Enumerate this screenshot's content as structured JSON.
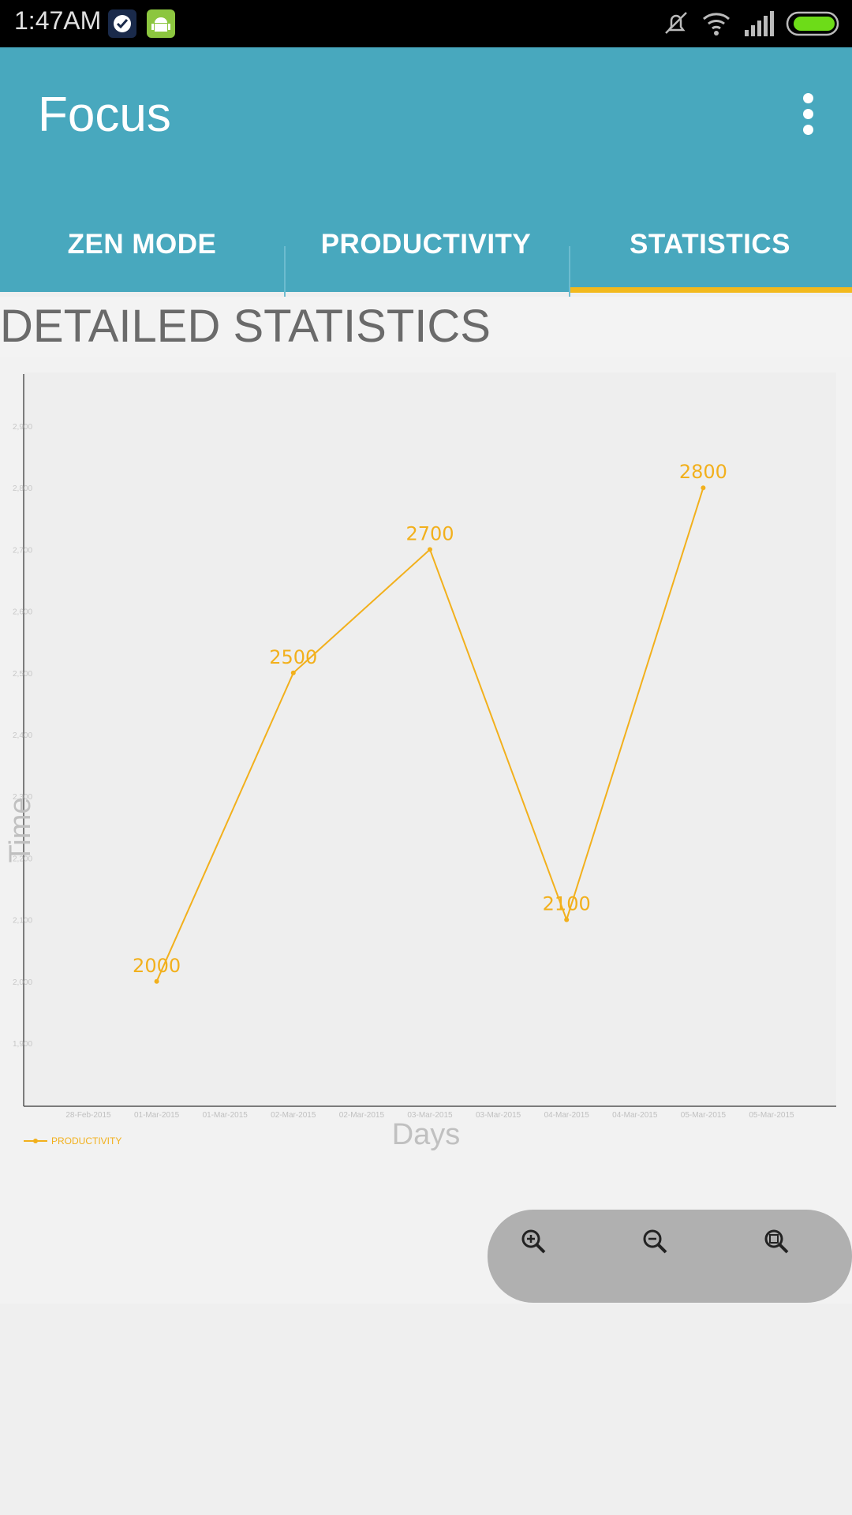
{
  "status_bar": {
    "time": "1:47AM"
  },
  "app": {
    "title": "Focus"
  },
  "tabs": [
    {
      "label": "ZEN MODE"
    },
    {
      "label": "PRODUCTIVITY"
    },
    {
      "label": "STATISTICS"
    }
  ],
  "section": {
    "title": "DETAILED STATISTICS"
  },
  "colors": {
    "appbar": "#48a8be",
    "indicator": "#f2b91c",
    "series": "#f2b01c"
  },
  "chart_data": {
    "type": "line",
    "x": [
      "01-Mar-2015",
      "02-Mar-2015",
      "03-Mar-2015",
      "04-Mar-2015",
      "05-Mar-2015"
    ],
    "series": [
      {
        "name": "PRODUCTIVITY",
        "values": [
          2000,
          2500,
          2700,
          2100,
          2800
        ]
      }
    ],
    "xlabel": "Days",
    "ylabel": "Time",
    "x_tick_labels": [
      "28-Feb-2015",
      "01-Mar-2015",
      "01-Mar-2015",
      "02-Mar-2015",
      "02-Mar-2015",
      "03-Mar-2015",
      "03-Mar-2015",
      "04-Mar-2015",
      "04-Mar-2015",
      "05-Mar-2015",
      "05-Mar-2015"
    ],
    "y_tick_labels": [
      "1,900",
      "2,000",
      "2,100",
      "2,200",
      "2,300",
      "2,400",
      "2,500",
      "2,600",
      "2,700",
      "2,800",
      "2,900"
    ],
    "ylim": [
      1900,
      2900
    ],
    "legend_position": "bottom-left",
    "grid": false
  },
  "zoom_controls": [
    {
      "icon": "zoom-in-icon"
    },
    {
      "icon": "zoom-out-icon"
    },
    {
      "icon": "zoom-reset-icon"
    }
  ]
}
